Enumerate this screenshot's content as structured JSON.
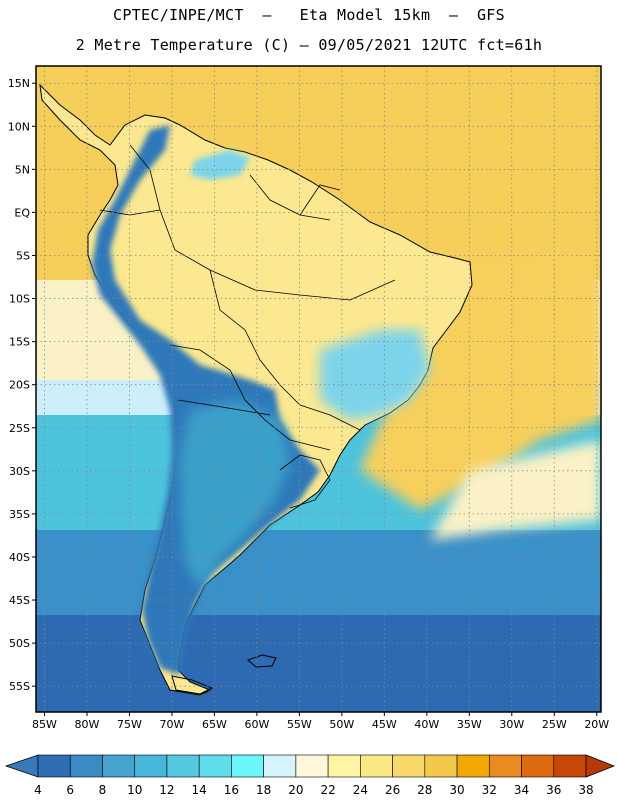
{
  "title_line1": "CPTEC/INPE/MCT  –   Eta Model 15km  –  GFS",
  "title_line2": "2 Metre Temperature (C) – 09/05/2021 12UTC fct=61h",
  "lat_labels": [
    "15N",
    "10N",
    "5N",
    "EQ",
    "5S",
    "10S",
    "15S",
    "20S",
    "25S",
    "30S",
    "35S",
    "40S",
    "45S",
    "50S",
    "55S"
  ],
  "lon_labels": [
    "85W",
    "80W",
    "75W",
    "70W",
    "65W",
    "60W",
    "55W",
    "50W",
    "45W",
    "40W",
    "35W",
    "30W",
    "25W",
    "20W"
  ],
  "extent": {
    "lon_min": -86,
    "lon_max": -19.5,
    "lat_min": -58,
    "lat_max": 17
  },
  "grid": {
    "dotted": true,
    "lon_step": 5,
    "lat_step": 5
  },
  "colorbar": {
    "levels": [
      "4",
      "6",
      "8",
      "10",
      "12",
      "14",
      "16",
      "18",
      "20",
      "22",
      "24",
      "26",
      "28",
      "30",
      "32",
      "34",
      "36",
      "38"
    ],
    "colors": [
      "#3a79b9",
      "#2f6eb4",
      "#3a8ac3",
      "#46a3cf",
      "#48b6d8",
      "#55c9df",
      "#5fdde8",
      "#6af6fb",
      "#d5f4fb",
      "#fff6dc",
      "#fff4a3",
      "#fce880",
      "#f8d969",
      "#f2c94a",
      "#f1a800",
      "#ea8b1f",
      "#e06a0f",
      "#c74804",
      "#b83a06"
    ],
    "end_arrows": true
  },
  "field_colors": {
    "sea_north": "#f6cf5b",
    "land_tropical": "#fbe890",
    "sea_mid": "#fbf1c6",
    "sea_cool": "#cdeffb",
    "sea_cold1": "#4dc3dc",
    "sea_cold2": "#3a90c8",
    "sea_cold3": "#2d6ab2",
    "andes": "#2f78b9",
    "southern_cone": "#3ba0c9",
    "south_brazil": "#7dd4ea",
    "boundary": "#000000"
  },
  "scale_legend": "temperature in degrees Celsius"
}
